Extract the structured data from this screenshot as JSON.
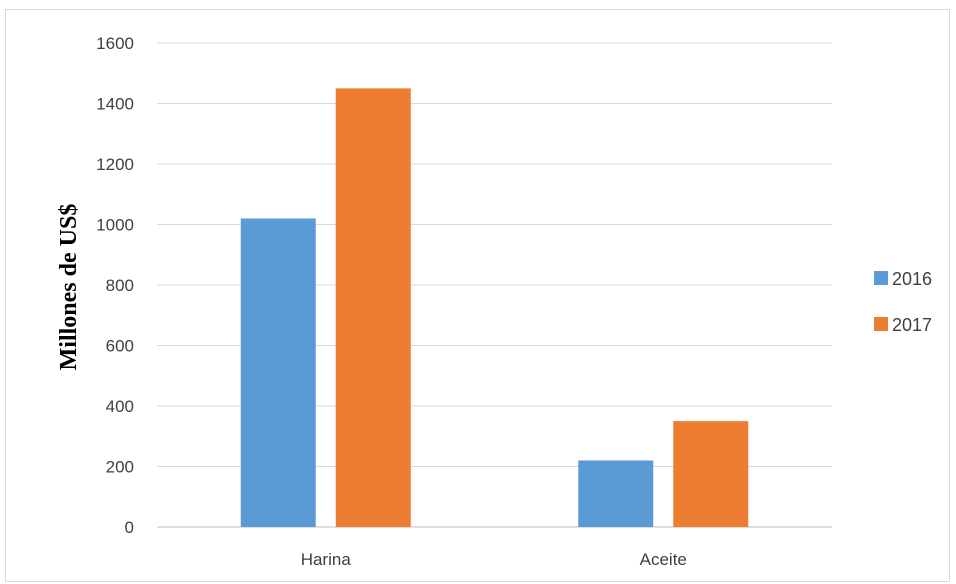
{
  "chart_data": {
    "type": "bar",
    "title": "",
    "xlabel": "",
    "ylabel": "Millones de US$",
    "categories": [
      "Harina",
      "Aceite"
    ],
    "series": [
      {
        "name": "2016",
        "values": [
          1020,
          220
        ],
        "color": "#5b9bd5"
      },
      {
        "name": "2017",
        "values": [
          1450,
          350
        ],
        "color": "#ed7d31"
      }
    ],
    "ylim": [
      0,
      1600
    ],
    "yticks": [
      "0",
      "200",
      "400",
      "600",
      "800",
      "1000",
      "1200",
      "1400",
      "1600"
    ],
    "grid": true,
    "legend_position": "right"
  }
}
